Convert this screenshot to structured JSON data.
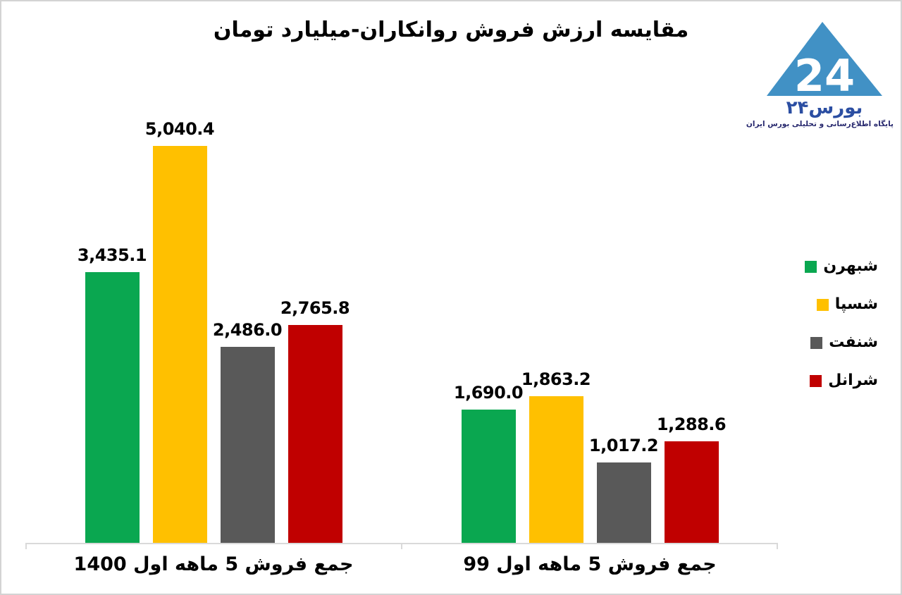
{
  "frame": {
    "bg": "#ffffff",
    "border_color": "#d3d3d3"
  },
  "logo": {
    "name": "بورس۲۴",
    "digits": "24",
    "tagline": "پایگاه اطلاع‌رسانی و تحلیلی بورس ایران",
    "triangle_color": "#4191c5",
    "name_color": "#2b4ea2",
    "tagline_color": "#26276d"
  },
  "chart_data": {
    "type": "bar",
    "title": "مقایسه ارزش فروش روانکاران-میلیارد تومان",
    "title_color": "#000000",
    "rtl": true,
    "grid": false,
    "legend_position": "right",
    "axis_color": "#d9d9d9",
    "label_color": "#000000",
    "ylim": [
      0,
      5500
    ],
    "categories": [
      "جمع فروش 5 ماهه اول 1400",
      "جمع فروش 5 ماهه اول 99"
    ],
    "series": [
      {
        "name": "شبهرن",
        "color": "#0aa750",
        "values": [
          3435.1,
          1690.0
        ],
        "labels": [
          "3,435.1",
          "1,690.0"
        ]
      },
      {
        "name": "شسپا",
        "color": "#ffc000",
        "values": [
          5040.4,
          1863.2
        ],
        "labels": [
          "5,040.4",
          "1,863.2"
        ]
      },
      {
        "name": "شنفت",
        "color": "#595959",
        "values": [
          2486.0,
          1017.2
        ],
        "labels": [
          "2,486.0",
          "1,017.2"
        ]
      },
      {
        "name": "شرانل",
        "color": "#c00000",
        "values": [
          2765.8,
          1288.6
        ],
        "labels": [
          "2,765.8",
          "1,288.6"
        ]
      }
    ]
  }
}
